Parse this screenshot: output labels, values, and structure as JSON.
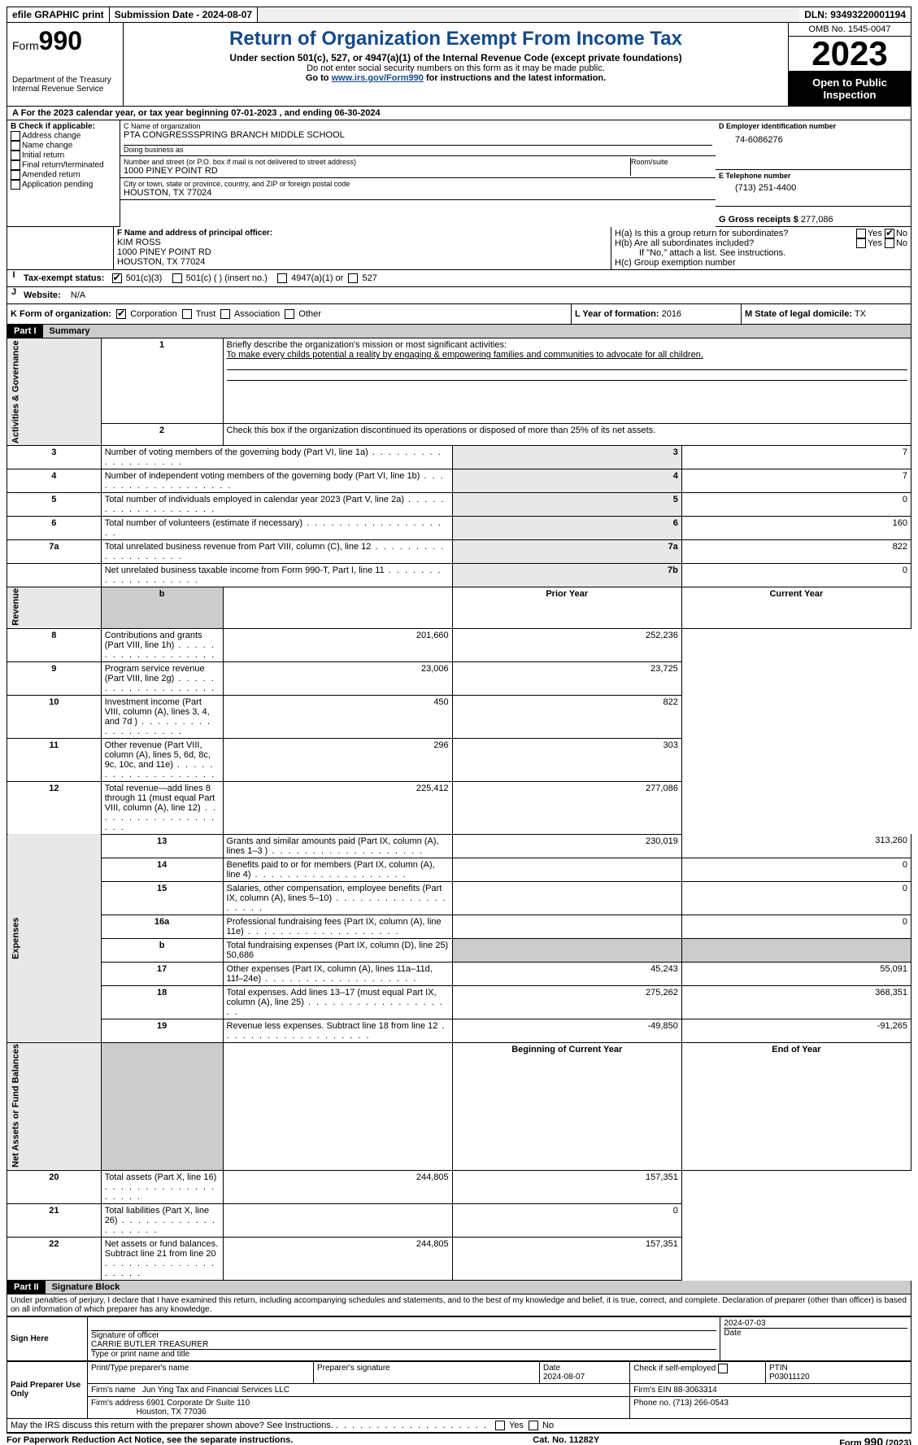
{
  "topbar": {
    "efile": "efile GRAPHIC print",
    "submission": "Submission Date - 2024-08-07",
    "dln": "DLN: 93493220001194"
  },
  "header": {
    "form_prefix": "Form",
    "form_no": "990",
    "dept": "Department of the Treasury",
    "irs": "Internal Revenue Service",
    "title": "Return of Organization Exempt From Income Tax",
    "subtitle": "Under section 501(c), 527, or 4947(a)(1) of the Internal Revenue Code (except private foundations)",
    "note1": "Do not enter social security numbers on this form as it may be made public.",
    "note2_pre": "Go to ",
    "note2_link": "www.irs.gov/Form990",
    "note2_post": " for instructions and the latest information.",
    "omb": "OMB No. 1545-0047",
    "year": "2023",
    "open": "Open to Public Inspection"
  },
  "periodA": "For the 2023 calendar year, or tax year beginning 07-01-2023    , and ending 06-30-2024",
  "boxB": {
    "title": "B Check if applicable:",
    "items": [
      "Address change",
      "Name change",
      "Initial return",
      "Final return/terminated",
      "Amended return",
      "Application pending"
    ]
  },
  "boxC": {
    "name_lbl": "C Name of organization",
    "name": "PTA CONGRESSSPRING BRANCH MIDDLE SCHOOL",
    "dba_lbl": "Doing business as",
    "dba": "",
    "street_lbl": "Number and street (or P.O. box if mail is not delivered to street address)",
    "street": "1000 PINEY POINT RD",
    "room_lbl": "Room/suite",
    "city_lbl": "City or town, state or province, country, and ZIP or foreign postal code",
    "city": "HOUSTON, TX  77024"
  },
  "boxD": {
    "lbl": "D Employer identification number",
    "val": "74-6086276"
  },
  "boxE": {
    "lbl": "E Telephone number",
    "val": "(713) 251-4400"
  },
  "boxG": {
    "lbl": "G Gross receipts $",
    "val": "277,086"
  },
  "boxF": {
    "lbl": "F  Name and address of principal officer:",
    "name": "KIM ROSS",
    "street": "1000 PINEY POINT RD",
    "city": "HOUSTON, TX  77024"
  },
  "boxH": {
    "a": "H(a)  Is this a group return for subordinates?",
    "b": "H(b)  Are all subordinates included?",
    "b_note": "If \"No,\" attach a list. See instructions.",
    "c": "H(c)  Group exemption number",
    "yes": "Yes",
    "no": "No"
  },
  "boxI": {
    "lbl": "Tax-exempt status:",
    "o1": "501(c)(3)",
    "o2": "501(c) (  ) (insert no.)",
    "o3": "4947(a)(1) or",
    "o4": "527"
  },
  "boxJ": {
    "lbl": "Website:",
    "val": "N/A"
  },
  "boxK": {
    "lbl": "K Form of organization:",
    "o1": "Corporation",
    "o2": "Trust",
    "o3": "Association",
    "o4": "Other"
  },
  "boxL": {
    "lbl": "L Year of formation:",
    "val": "2016"
  },
  "boxM": {
    "lbl": "M State of legal domicile:",
    "val": "TX"
  },
  "part1": {
    "hdr": "Part I",
    "title": "Summary"
  },
  "summary": {
    "l1_lbl": "Briefly describe the organization's mission or most significant activities:",
    "l1_val": "To make every childs potential a reality by engaging & empowering families and communities to advocate for all children.",
    "l2": "Check this box      if the organization discontinued its operations or disposed of more than 25% of its net assets.",
    "rows_gov": [
      {
        "n": "3",
        "t": "Number of voting members of the governing body (Part VI, line 1a)",
        "c": "3",
        "v": "7"
      },
      {
        "n": "4",
        "t": "Number of independent voting members of the governing body (Part VI, line 1b)",
        "c": "4",
        "v": "7"
      },
      {
        "n": "5",
        "t": "Total number of individuals employed in calendar year 2023 (Part V, line 2a)",
        "c": "5",
        "v": "0"
      },
      {
        "n": "6",
        "t": "Total number of volunteers (estimate if necessary)",
        "c": "6",
        "v": "160"
      },
      {
        "n": "7a",
        "t": "Total unrelated business revenue from Part VIII, column (C), line 12",
        "c": "7a",
        "v": "822"
      },
      {
        "n": "",
        "t": "Net unrelated business taxable income from Form 990-T, Part I, line 11",
        "c": "7b",
        "v": "0"
      }
    ],
    "prior_hdr": "Prior Year",
    "current_hdr": "Current Year",
    "rows_rev": [
      {
        "n": "8",
        "t": "Contributions and grants (Part VIII, line 1h)",
        "p": "201,660",
        "c": "252,236"
      },
      {
        "n": "9",
        "t": "Program service revenue (Part VIII, line 2g)",
        "p": "23,006",
        "c": "23,725"
      },
      {
        "n": "10",
        "t": "Investment income (Part VIII, column (A), lines 3, 4, and 7d )",
        "p": "450",
        "c": "822"
      },
      {
        "n": "11",
        "t": "Other revenue (Part VIII, column (A), lines 5, 6d, 8c, 9c, 10c, and 11e)",
        "p": "296",
        "c": "303"
      },
      {
        "n": "12",
        "t": "Total revenue—add lines 8 through 11 (must equal Part VIII, column (A), line 12)",
        "p": "225,412",
        "c": "277,086"
      }
    ],
    "rows_exp": [
      {
        "n": "13",
        "t": "Grants and similar amounts paid (Part IX, column (A), lines 1–3 )",
        "p": "230,019",
        "c": "313,260"
      },
      {
        "n": "14",
        "t": "Benefits paid to or for members (Part IX, column (A), line 4)",
        "p": "",
        "c": "0"
      },
      {
        "n": "15",
        "t": "Salaries, other compensation, employee benefits (Part IX, column (A), lines 5–10)",
        "p": "",
        "c": "0"
      },
      {
        "n": "16a",
        "t": "Professional fundraising fees (Part IX, column (A), line 11e)",
        "p": "",
        "c": "0"
      },
      {
        "n": "b",
        "t": "Total fundraising expenses (Part IX, column (D), line 25) 50,686",
        "p": "GREY",
        "c": "GREY"
      },
      {
        "n": "17",
        "t": "Other expenses (Part IX, column (A), lines 11a–11d, 11f–24e)",
        "p": "45,243",
        "c": "55,091"
      },
      {
        "n": "18",
        "t": "Total expenses. Add lines 13–17 (must equal Part IX, column (A), line 25)",
        "p": "275,262",
        "c": "368,351"
      },
      {
        "n": "19",
        "t": "Revenue less expenses. Subtract line 18 from line 12",
        "p": "-49,850",
        "c": "-91,265"
      }
    ],
    "beg_hdr": "Beginning of Current Year",
    "end_hdr": "End of Year",
    "rows_net": [
      {
        "n": "20",
        "t": "Total assets (Part X, line 16)",
        "p": "244,805",
        "c": "157,351"
      },
      {
        "n": "21",
        "t": "Total liabilities (Part X, line 26)",
        "p": "",
        "c": "0"
      },
      {
        "n": "22",
        "t": "Net assets or fund balances. Subtract line 21 from line 20",
        "p": "244,805",
        "c": "157,351"
      }
    ],
    "side_gov": "Activities & Governance",
    "side_rev": "Revenue",
    "side_exp": "Expenses",
    "side_net": "Net Assets or Fund Balances"
  },
  "part2": {
    "hdr": "Part II",
    "title": "Signature Block"
  },
  "penalties": "Under penalties of perjury, I declare that I have examined this return, including accompanying schedules and statements, and to the best of my knowledge and belief, it is true, correct, and complete. Declaration of preparer (other than officer) is based on all information of which preparer has any knowledge.",
  "sign": {
    "here": "Sign Here",
    "sig_lbl": "Signature of officer",
    "officer": "CARRIE BUTLER  TREASURER",
    "type_lbl": "Type or print name and title",
    "date_lbl": "Date",
    "date": "2024-07-03"
  },
  "paid": {
    "title": "Paid Preparer Use Only",
    "name_lbl": "Print/Type preparer's name",
    "sig_lbl": "Preparer's signature",
    "date_lbl": "Date",
    "date": "2024-08-07",
    "self_lbl": "Check       if self-employed",
    "ptin_lbl": "PTIN",
    "ptin": "P03011120",
    "firm_name_lbl": "Firm's name",
    "firm_name": "Jun Ying Tax and Financial Services LLC",
    "firm_ein_lbl": "Firm's EIN",
    "firm_ein": "88-3063314",
    "firm_addr_lbl": "Firm's address",
    "firm_addr1": "6901 Corporate Dr Suite 110",
    "firm_addr2": "Houston, TX  77036",
    "phone_lbl": "Phone no.",
    "phone": "(713) 266-0543"
  },
  "discuss": "May the IRS discuss this return with the preparer shown above? See Instructions.",
  "footer": {
    "l": "For Paperwork Reduction Act Notice, see the separate instructions.",
    "m": "Cat. No. 11282Y",
    "r": "Form 990 (2023)"
  }
}
